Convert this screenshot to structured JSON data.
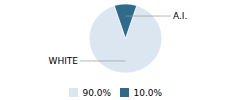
{
  "chart_data": {
    "type": "pie",
    "categories": [
      "WHITE",
      "A.I."
    ],
    "values": [
      90.0,
      10.0
    ],
    "value_labels": [
      "90.0%",
      "10.0%"
    ],
    "colors": [
      "#dce6f0",
      "#2e6b8a"
    ],
    "legend": "bottom"
  }
}
